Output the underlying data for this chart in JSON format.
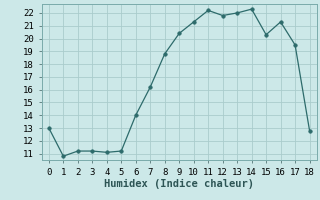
{
  "x": [
    0,
    1,
    2,
    3,
    4,
    5,
    6,
    7,
    8,
    9,
    10,
    11,
    12,
    13,
    14,
    15,
    16,
    17,
    18
  ],
  "y": [
    13.0,
    10.8,
    11.2,
    11.2,
    11.1,
    11.2,
    14.0,
    16.2,
    18.8,
    20.4,
    21.3,
    22.2,
    21.8,
    22.0,
    22.3,
    20.3,
    21.3,
    19.5,
    12.8
  ],
  "line_color": "#2d6b6b",
  "marker": "o",
  "marker_size": 2.5,
  "bg_color": "#cce8e8",
  "grid_color": "#aacccc",
  "xlabel": "Humidex (Indice chaleur)",
  "ylim": [
    10.5,
    22.7
  ],
  "xlim": [
    -0.5,
    18.5
  ],
  "yticks": [
    11,
    12,
    13,
    14,
    15,
    16,
    17,
    18,
    19,
    20,
    21,
    22
  ],
  "xticks": [
    0,
    1,
    2,
    3,
    4,
    5,
    6,
    7,
    8,
    9,
    10,
    11,
    12,
    13,
    14,
    15,
    16,
    17,
    18
  ],
  "tick_fontsize": 6.5,
  "xlabel_fontsize": 7.5
}
